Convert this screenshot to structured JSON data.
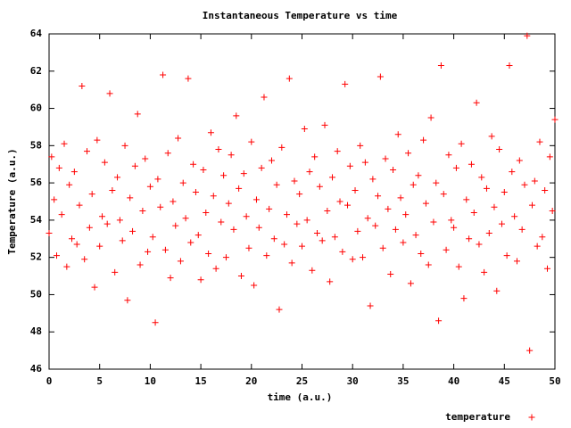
{
  "chart_data": {
    "type": "scatter",
    "title": "Instantaneous Temperature vs time",
    "x_label": "time (a.u.)",
    "y_label": "Temperature (a.u.)",
    "xlim": [
      0,
      50
    ],
    "xticks": [
      0,
      5,
      10,
      15,
      20,
      25,
      30,
      35,
      40,
      45,
      50
    ],
    "ylim": [
      46,
      64
    ],
    "yticks": [
      46,
      48,
      50,
      52,
      54,
      56,
      58,
      60,
      62,
      64
    ],
    "legend": "bottom-right",
    "series": [
      {
        "name": "temperature",
        "color": "#ff0000",
        "x": [
          0,
          0.25,
          0.5,
          0.75,
          1,
          1.25,
          1.5,
          1.75,
          2,
          2.25,
          2.5,
          2.75,
          3,
          3.25,
          3.5,
          3.75,
          4,
          4.25,
          4.5,
          4.75,
          5,
          5.25,
          5.5,
          5.75,
          6,
          6.25,
          6.5,
          6.75,
          7,
          7.25,
          7.5,
          7.75,
          8,
          8.25,
          8.5,
          8.75,
          9,
          9.25,
          9.5,
          9.75,
          10,
          10.25,
          10.5,
          10.75,
          11,
          11.25,
          11.5,
          11.75,
          12,
          12.25,
          12.5,
          12.75,
          13,
          13.25,
          13.5,
          13.75,
          14,
          14.25,
          14.5,
          14.75,
          15,
          15.25,
          15.5,
          15.75,
          16,
          16.25,
          16.5,
          16.75,
          17,
          17.25,
          17.5,
          17.75,
          18,
          18.25,
          18.5,
          18.75,
          19,
          19.25,
          19.5,
          19.75,
          20,
          20.25,
          20.5,
          20.75,
          21,
          21.25,
          21.5,
          21.75,
          22,
          22.25,
          22.5,
          22.75,
          23,
          23.25,
          23.5,
          23.75,
          24,
          24.25,
          24.5,
          24.75,
          25,
          25.25,
          25.5,
          25.75,
          26,
          26.25,
          26.5,
          26.75,
          27,
          27.25,
          27.5,
          27.75,
          28,
          28.25,
          28.5,
          28.75,
          29,
          29.25,
          29.5,
          29.75,
          30,
          30.25,
          30.5,
          30.75,
          31,
          31.25,
          31.5,
          31.75,
          32,
          32.25,
          32.5,
          32.75,
          33,
          33.25,
          33.5,
          33.75,
          34,
          34.25,
          34.5,
          34.75,
          35,
          35.25,
          35.5,
          35.75,
          36,
          36.25,
          36.5,
          36.75,
          37,
          37.25,
          37.5,
          37.75,
          38,
          38.25,
          38.5,
          38.75,
          39,
          39.25,
          39.5,
          39.75,
          40,
          40.25,
          40.5,
          40.75,
          41,
          41.25,
          41.5,
          41.75,
          42,
          42.25,
          42.5,
          42.75,
          43,
          43.25,
          43.5,
          43.75,
          44,
          44.25,
          44.5,
          44.75,
          45,
          45.25,
          45.5,
          45.75,
          46,
          46.25,
          46.5,
          46.75,
          47,
          47.25,
          47.5,
          47.75,
          48,
          48.25,
          48.5,
          48.75,
          49,
          49.25,
          49.5,
          49.75,
          50
        ],
        "values": [
          53.3,
          57.4,
          55.1,
          52.1,
          56.8,
          54.3,
          58.1,
          51.5,
          55.9,
          53.0,
          56.6,
          52.7,
          54.8,
          61.2,
          51.9,
          57.7,
          53.6,
          55.4,
          50.4,
          58.3,
          52.6,
          54.2,
          57.1,
          53.8,
          60.8,
          55.6,
          51.2,
          56.3,
          54.0,
          52.9,
          58.0,
          49.7,
          55.2,
          53.4,
          56.9,
          59.7,
          51.6,
          54.5,
          57.3,
          52.3,
          55.8,
          53.1,
          48.5,
          56.2,
          54.7,
          61.8,
          52.4,
          57.6,
          50.9,
          55.0,
          53.7,
          58.4,
          51.8,
          56.0,
          54.1,
          61.6,
          52.8,
          57.0,
          55.5,
          53.2,
          50.8,
          56.7,
          54.4,
          52.2,
          58.7,
          55.3,
          51.4,
          57.8,
          53.9,
          56.4,
          52.0,
          54.9,
          57.5,
          53.5,
          59.6,
          55.7,
          51.0,
          56.5,
          54.2,
          52.5,
          58.2,
          50.5,
          55.1,
          53.6,
          56.8,
          60.6,
          52.1,
          54.6,
          57.2,
          53.0,
          55.9,
          49.2,
          57.9,
          52.7,
          54.3,
          61.6,
          51.7,
          56.1,
          53.8,
          55.4,
          52.6,
          58.9,
          54.0,
          56.6,
          51.3,
          57.4,
          53.3,
          55.8,
          52.9,
          59.1,
          54.5,
          50.7,
          56.3,
          53.1,
          57.7,
          55.0,
          52.3,
          61.3,
          54.8,
          56.9,
          51.9,
          55.6,
          53.4,
          58.0,
          52.0,
          57.1,
          54.1,
          49.4,
          56.2,
          53.7,
          55.3,
          61.7,
          52.5,
          57.3,
          54.6,
          51.1,
          56.7,
          53.5,
          58.6,
          55.2,
          52.8,
          54.3,
          57.6,
          50.6,
          55.9,
          53.2,
          56.4,
          52.2,
          58.3,
          54.9,
          51.6,
          59.5,
          53.9,
          56.0,
          48.6,
          62.3,
          55.4,
          52.4,
          57.5,
          54.0,
          53.6,
          56.8,
          51.5,
          58.1,
          49.8,
          55.1,
          53.0,
          57.0,
          54.4,
          60.3,
          52.7,
          56.3,
          51.2,
          55.7,
          53.3,
          58.5,
          54.7,
          50.2,
          57.8,
          53.8,
          55.5,
          52.1,
          62.3,
          56.6,
          54.2,
          51.8,
          57.2,
          53.5,
          55.9,
          63.9,
          47.0,
          54.8,
          56.1,
          52.6,
          58.2,
          53.1,
          55.6,
          51.4,
          57.4,
          54.5,
          59.4
        ]
      }
    ]
  }
}
